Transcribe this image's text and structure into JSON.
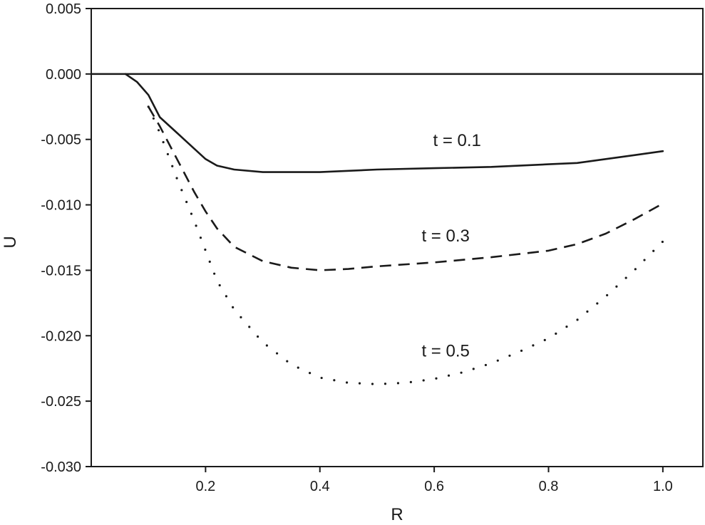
{
  "chart_data": {
    "type": "line",
    "xlabel": "R",
    "ylabel": "U",
    "xlim": [
      0.0,
      1.07
    ],
    "ylim": [
      -0.03,
      0.005
    ],
    "x_ticks": [
      0.2,
      0.4,
      0.6,
      0.8,
      1.0
    ],
    "x_tick_labels": [
      "0.2",
      "0.4",
      "0.6",
      "0.8",
      "1.0"
    ],
    "y_ticks": [
      0.005,
      0.0,
      -0.005,
      -0.01,
      -0.015,
      -0.02,
      -0.025,
      -0.03
    ],
    "y_tick_labels": [
      "0.005",
      "0.000",
      "-0.005",
      "-0.010",
      "-0.015",
      "-0.020",
      "-0.025",
      "-0.030"
    ],
    "grid": false,
    "reference_line": {
      "y": 0.0
    },
    "series": [
      {
        "style": "solid",
        "x": [
          0.06,
          0.08,
          0.1,
          0.12,
          0.15,
          0.18,
          0.2,
          0.22,
          0.25,
          0.3,
          0.35,
          0.4,
          0.5,
          0.6,
          0.7,
          0.8,
          0.85,
          0.9,
          0.95,
          1.0
        ],
        "y": [
          0.0,
          -0.0006,
          -0.0016,
          -0.0033,
          -0.0045,
          -0.0057,
          -0.0065,
          -0.007,
          -0.0073,
          -0.0075,
          -0.0075,
          -0.0075,
          -0.0073,
          -0.0072,
          -0.0071,
          -0.0069,
          -0.0068,
          -0.0065,
          -0.0062,
          -0.0059
        ]
      },
      {
        "style": "dashed",
        "x": [
          0.1,
          0.12,
          0.15,
          0.18,
          0.2,
          0.22,
          0.25,
          0.3,
          0.35,
          0.4,
          0.45,
          0.5,
          0.6,
          0.7,
          0.8,
          0.85,
          0.9,
          0.95,
          1.0
        ],
        "y": [
          -0.0025,
          -0.004,
          -0.0065,
          -0.009,
          -0.0105,
          -0.0118,
          -0.0132,
          -0.0143,
          -0.0148,
          -0.015,
          -0.0149,
          -0.0147,
          -0.0144,
          -0.014,
          -0.0135,
          -0.013,
          -0.0122,
          -0.0111,
          -0.0099
        ]
      },
      {
        "style": "dotted",
        "x": [
          0.1,
          0.12,
          0.15,
          0.18,
          0.2,
          0.22,
          0.25,
          0.3,
          0.35,
          0.4,
          0.45,
          0.5,
          0.55,
          0.6,
          0.65,
          0.7,
          0.75,
          0.8,
          0.85,
          0.9,
          0.95,
          1.0
        ],
        "y": [
          -0.0025,
          -0.0045,
          -0.008,
          -0.0112,
          -0.0135,
          -0.0158,
          -0.018,
          -0.0205,
          -0.0222,
          -0.0232,
          -0.0236,
          -0.0237,
          -0.0236,
          -0.0233,
          -0.0228,
          -0.0221,
          -0.0212,
          -0.0202,
          -0.0188,
          -0.017,
          -0.015,
          -0.0128
        ]
      }
    ],
    "annotations": [
      {
        "text": "t = 0.1",
        "x": 0.64,
        "y": -0.0055
      },
      {
        "text": "t = 0.3",
        "x": 0.62,
        "y": -0.0128
      },
      {
        "text": "t = 0.5",
        "x": 0.62,
        "y": -0.0216
      }
    ]
  }
}
